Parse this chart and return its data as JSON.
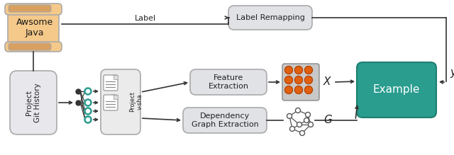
{
  "bg_color": "#ffffff",
  "scroll_color": "#f5c98a",
  "scroll_curl_color": "#d9a060",
  "git_color": "#e8e8ec",
  "git_edge": "#aaaaaa",
  "box_color": "#e0e2e6",
  "box_edge": "#aaaaaa",
  "example_color": "#2a9d8f",
  "example_edge": "#1e8070",
  "orange_color": "#e06010",
  "teal_color": "#2a9d8f",
  "dark": "#333333",
  "mid": "#888888",
  "scroll_text": "Awsome\nJava",
  "git_text": "Project\nGit History",
  "lr_text": "Label Remapping",
  "fe_text": "Feature\nExtraction",
  "dg_text": "Dependency\nGraph Extraction",
  "ex_text": "Example",
  "vsha_text": "Project\nv-sha",
  "label_txt": "Label",
  "x_txt": "X",
  "y_txt": "y",
  "g_txt": "G"
}
